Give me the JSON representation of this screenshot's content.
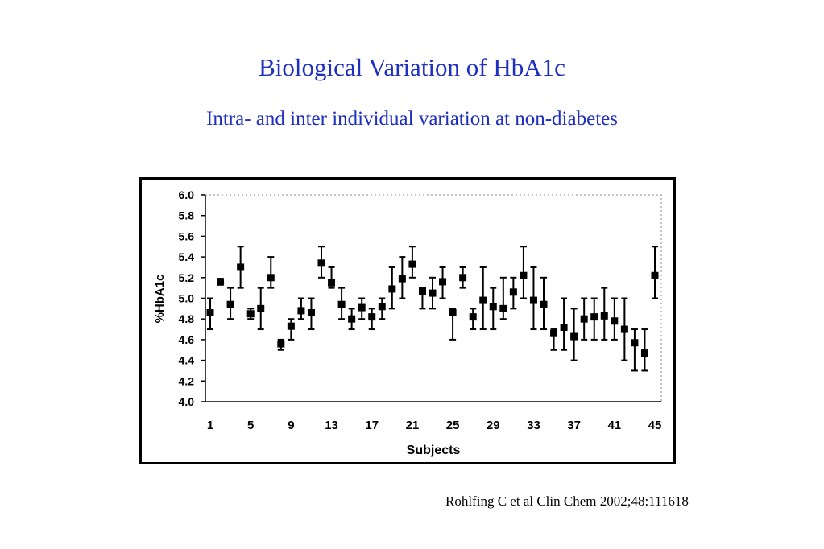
{
  "title": "Biological Variation of HbA1c",
  "subtitle": "Intra- and  inter individual variation at non-diabetes",
  "citation": "Rohlfing C et al Clin Chem 2002;48:111618",
  "colors": {
    "heading": "#1f2fc0",
    "marks": "#000000"
  },
  "chart_data": {
    "type": "scatter",
    "xlabel": "Subjects",
    "ylabel": "%HbA1c",
    "xlim": [
      0.5,
      45.5
    ],
    "ylim": [
      4.0,
      6.0
    ],
    "x_ticks": [
      "1",
      "5",
      "9",
      "13",
      "17",
      "21",
      "25",
      "29",
      "33",
      "37",
      "41",
      "45"
    ],
    "y_ticks": [
      "6.0",
      "5.8",
      "5.6",
      "5.4",
      "5.2",
      "5.0",
      "4.8",
      "4.6",
      "4.4",
      "4.2",
      "4.0"
    ],
    "grid": false,
    "error_bars": true,
    "points": [
      {
        "x": 1,
        "y": 4.86,
        "low": 4.7,
        "high": 5.0
      },
      {
        "x": 2,
        "y": 5.16,
        "low": 5.13,
        "high": 5.19
      },
      {
        "x": 3,
        "y": 4.94,
        "low": 4.8,
        "high": 5.1
      },
      {
        "x": 4,
        "y": 5.3,
        "low": 5.1,
        "high": 5.5
      },
      {
        "x": 5,
        "y": 4.85,
        "low": 4.8,
        "high": 4.9
      },
      {
        "x": 6,
        "y": 4.9,
        "low": 4.7,
        "high": 5.1
      },
      {
        "x": 7,
        "y": 5.2,
        "low": 5.1,
        "high": 5.4
      },
      {
        "x": 8,
        "y": 4.56,
        "low": 4.5,
        "high": 4.6
      },
      {
        "x": 9,
        "y": 4.73,
        "low": 4.6,
        "high": 4.8
      },
      {
        "x": 10,
        "y": 4.88,
        "low": 4.8,
        "high": 5.0
      },
      {
        "x": 11,
        "y": 4.86,
        "low": 4.7,
        "high": 5.0
      },
      {
        "x": 12,
        "y": 5.34,
        "low": 5.2,
        "high": 5.5
      },
      {
        "x": 13,
        "y": 5.15,
        "low": 5.1,
        "high": 5.3
      },
      {
        "x": 14,
        "y": 4.94,
        "low": 4.8,
        "high": 5.1
      },
      {
        "x": 15,
        "y": 4.8,
        "low": 4.7,
        "high": 4.9
      },
      {
        "x": 16,
        "y": 4.91,
        "low": 4.8,
        "high": 5.0
      },
      {
        "x": 17,
        "y": 4.82,
        "low": 4.7,
        "high": 4.9
      },
      {
        "x": 18,
        "y": 4.92,
        "low": 4.8,
        "high": 5.0
      },
      {
        "x": 19,
        "y": 5.09,
        "low": 4.9,
        "high": 5.3
      },
      {
        "x": 20,
        "y": 5.19,
        "low": 5.0,
        "high": 5.4
      },
      {
        "x": 21,
        "y": 5.33,
        "low": 5.2,
        "high": 5.5
      },
      {
        "x": 22,
        "y": 5.07,
        "low": 4.9,
        "high": 5.1
      },
      {
        "x": 23,
        "y": 5.05,
        "low": 4.9,
        "high": 5.2
      },
      {
        "x": 24,
        "y": 5.16,
        "low": 5.0,
        "high": 5.3
      },
      {
        "x": 25,
        "y": 4.86,
        "low": 4.6,
        "high": 4.9
      },
      {
        "x": 26,
        "y": 5.2,
        "low": 5.1,
        "high": 5.3
      },
      {
        "x": 27,
        "y": 4.82,
        "low": 4.7,
        "high": 4.9
      },
      {
        "x": 28,
        "y": 4.98,
        "low": 4.7,
        "high": 5.3
      },
      {
        "x": 29,
        "y": 4.92,
        "low": 4.7,
        "high": 5.1
      },
      {
        "x": 30,
        "y": 4.9,
        "low": 4.8,
        "high": 5.2
      },
      {
        "x": 31,
        "y": 5.06,
        "low": 4.9,
        "high": 5.2
      },
      {
        "x": 32,
        "y": 5.22,
        "low": 5.0,
        "high": 5.5
      },
      {
        "x": 33,
        "y": 4.98,
        "low": 4.7,
        "high": 5.3
      },
      {
        "x": 34,
        "y": 4.94,
        "low": 4.7,
        "high": 5.2
      },
      {
        "x": 35,
        "y": 4.66,
        "low": 4.5,
        "high": 4.7
      },
      {
        "x": 36,
        "y": 4.72,
        "low": 4.5,
        "high": 5.0
      },
      {
        "x": 37,
        "y": 4.63,
        "low": 4.4,
        "high": 4.9
      },
      {
        "x": 38,
        "y": 4.8,
        "low": 4.6,
        "high": 5.0
      },
      {
        "x": 39,
        "y": 4.82,
        "low": 4.6,
        "high": 5.0
      },
      {
        "x": 40,
        "y": 4.83,
        "low": 4.6,
        "high": 5.1
      },
      {
        "x": 41,
        "y": 4.78,
        "low": 4.6,
        "high": 5.0
      },
      {
        "x": 42,
        "y": 4.7,
        "low": 4.4,
        "high": 5.0
      },
      {
        "x": 43,
        "y": 4.57,
        "low": 4.3,
        "high": 4.7
      },
      {
        "x": 44,
        "y": 4.47,
        "low": 4.3,
        "high": 4.7
      },
      {
        "x": 45,
        "y": 5.22,
        "low": 5.0,
        "high": 5.5
      }
    ]
  }
}
